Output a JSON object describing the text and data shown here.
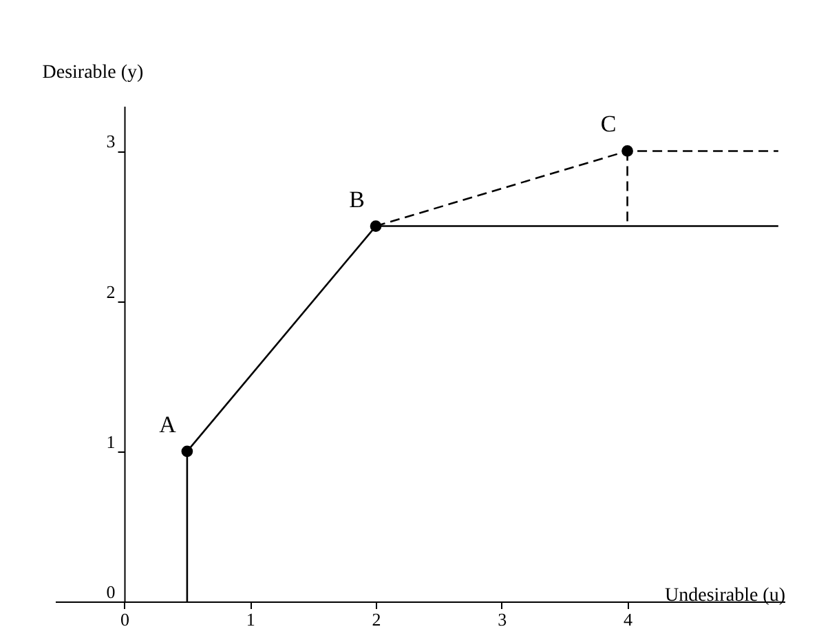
{
  "chart_data": {
    "type": "line",
    "xlabel": "Undesirable (u)",
    "ylabel": "Desirable (y)",
    "xlim": [
      -0.55,
      5.25
    ],
    "ylim": [
      0,
      3.3
    ],
    "xticks": [
      0,
      1,
      2,
      3,
      4
    ],
    "yticks": [
      0,
      1,
      2,
      3
    ],
    "grid": false,
    "series": [
      {
        "color": "#000000",
        "line_style": "solid",
        "x": [
          0.5,
          0.5,
          2,
          5.2
        ],
        "values": [
          0,
          1,
          2.5,
          2.5
        ]
      },
      {
        "color": "#000000",
        "line_style": "dashed",
        "x": [
          2,
          4,
          5.2
        ],
        "values": [
          2.5,
          3,
          3
        ]
      },
      {
        "color": "#000000",
        "line_style": "dashed",
        "x": [
          4,
          4
        ],
        "values": [
          3,
          2.5
        ]
      },
      {
        "type": "scatter",
        "color": "#000000",
        "marker": "circle",
        "x": [
          0.5,
          2,
          4
        ],
        "values": [
          1,
          2.5,
          3
        ]
      }
    ],
    "annotations": [
      {
        "text": "A",
        "x": 0.5,
        "y": 1
      },
      {
        "text": "B",
        "x": 2,
        "y": 2.5
      },
      {
        "text": "C",
        "x": 4,
        "y": 3
      }
    ]
  }
}
